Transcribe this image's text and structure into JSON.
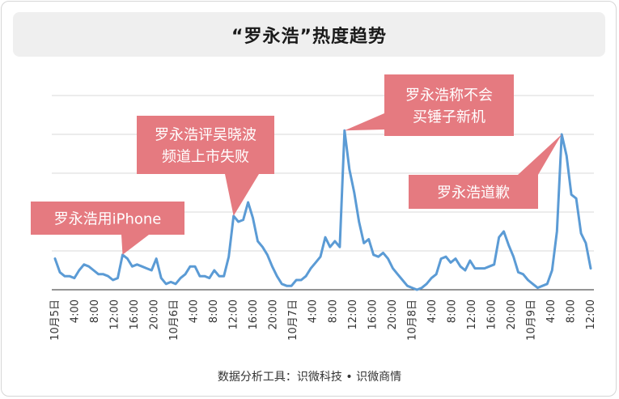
{
  "title": "“罗永浩”热度趋势",
  "footer": "数据分析工具：识微科技 • 识微商情",
  "colors": {
    "line": "#5b9bd5",
    "callout": "#e57a80",
    "grid": "#d9d9d9",
    "axis": "#333333"
  },
  "chart_data": {
    "type": "line",
    "title": "“罗永浩”热度趋势",
    "grid": true,
    "ylim": [
      0,
      100
    ],
    "x_ticks": [
      "10月5日",
      "4:00",
      "8:00",
      "12:00",
      "16:00",
      "20:00",
      "10月6日",
      "4:00",
      "8:00",
      "12:00",
      "16:00",
      "20:00",
      "10月7日",
      "4:00",
      "8:00",
      "12:00",
      "16:00",
      "20:00",
      "10月8日",
      "4:00",
      "8:00",
      "12:00",
      "16:00",
      "20:00",
      "10月9日",
      "4:00",
      "8:00",
      "12:00"
    ],
    "series": [
      {
        "values": [
          16,
          9,
          7,
          7,
          6,
          10,
          13,
          12,
          10,
          8,
          8,
          7,
          5,
          6,
          18,
          16,
          12,
          13,
          12,
          11,
          10,
          16,
          6,
          3,
          4,
          3,
          6,
          8,
          12,
          12,
          7,
          7,
          6,
          10,
          7,
          7,
          17,
          38,
          35,
          36,
          45,
          37,
          25,
          22,
          18,
          12,
          7,
          3,
          2,
          2,
          5,
          5,
          7,
          11,
          14,
          17,
          27,
          22,
          25,
          22,
          82,
          62,
          50,
          35,
          24,
          26,
          18,
          17,
          19,
          16,
          11,
          8,
          5,
          2,
          1,
          0,
          1,
          3,
          6,
          8,
          16,
          17,
          14,
          16,
          12,
          10,
          15,
          11,
          11,
          11,
          12,
          13,
          27,
          30,
          23,
          17,
          9,
          8,
          5,
          3,
          1,
          2,
          3,
          10,
          30,
          80,
          69,
          49,
          47,
          29,
          24,
          11
        ]
      }
    ],
    "annotations": [
      {
        "text": [
          "罗永浩用iPhone"
        ]
      },
      {
        "text": [
          "罗永浩评吴晓波",
          "频道上市失败"
        ]
      },
      {
        "text": [
          "罗永浩称不会",
          "买锤子新机"
        ]
      },
      {
        "text": [
          "罗永浩道歉"
        ]
      }
    ]
  }
}
